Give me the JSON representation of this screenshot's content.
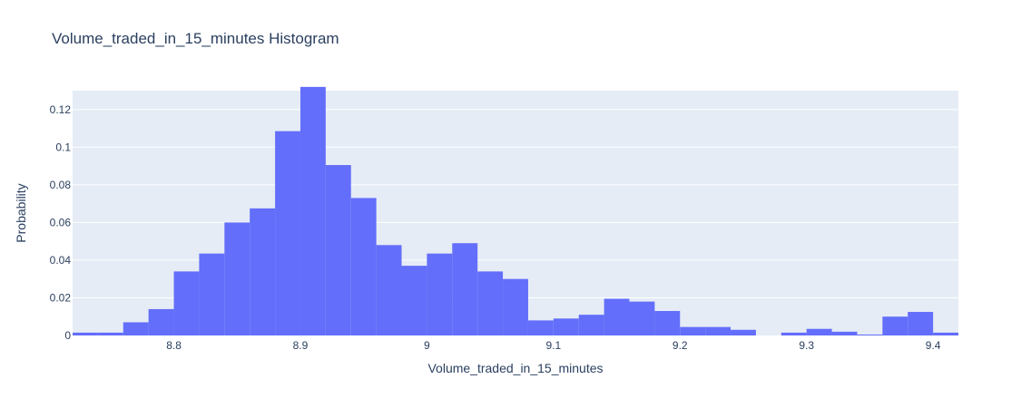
{
  "colors": {
    "plot_bg": "#e5ecf6",
    "grid": "#ffffff",
    "bar": "#636efa",
    "text": "#2a3f5f"
  },
  "chart_data": {
    "type": "bar",
    "title": "Volume_traded_in_15_minutes Histogram",
    "xlabel": "Volume_traded_in_15_minutes",
    "ylabel": "Probability",
    "xlim": [
      8.72,
      9.42
    ],
    "ylim": [
      0,
      0.13
    ],
    "grid": true,
    "bin_width": 0.02,
    "bin_starts": [
      8.72,
      8.74,
      8.76,
      8.78,
      8.8,
      8.82,
      8.84,
      8.86,
      8.88,
      8.9,
      8.92,
      8.94,
      8.96,
      8.98,
      9.0,
      9.02,
      9.04,
      9.06,
      9.08,
      9.1,
      9.12,
      9.14,
      9.16,
      9.18,
      9.2,
      9.22,
      9.24,
      9.26,
      9.28,
      9.3,
      9.32,
      9.34,
      9.36,
      9.38,
      9.4
    ],
    "values": [
      0.0015,
      0.0015,
      0.007,
      0.014,
      0.034,
      0.0435,
      0.06,
      0.0675,
      0.1085,
      0.132,
      0.0905,
      0.073,
      0.048,
      0.037,
      0.0435,
      0.049,
      0.034,
      0.03,
      0.008,
      0.009,
      0.011,
      0.0195,
      0.018,
      0.013,
      0.0045,
      0.0045,
      0.003,
      0,
      0.0015,
      0.0035,
      0.002,
      0.0005,
      0.01,
      0.0125,
      0.0015
    ],
    "x_ticks": [
      8.8,
      8.9,
      9.0,
      9.1,
      9.2,
      9.3,
      9.4
    ],
    "x_tick_labels": [
      "8.8",
      "8.9",
      "9",
      "9.1",
      "9.2",
      "9.3",
      "9.4"
    ],
    "y_ticks": [
      0,
      0.02,
      0.04,
      0.06,
      0.08,
      0.1,
      0.12
    ],
    "y_tick_labels": [
      "0",
      "0.02",
      "0.04",
      "0.06",
      "0.08",
      "0.1",
      "0.12"
    ]
  }
}
